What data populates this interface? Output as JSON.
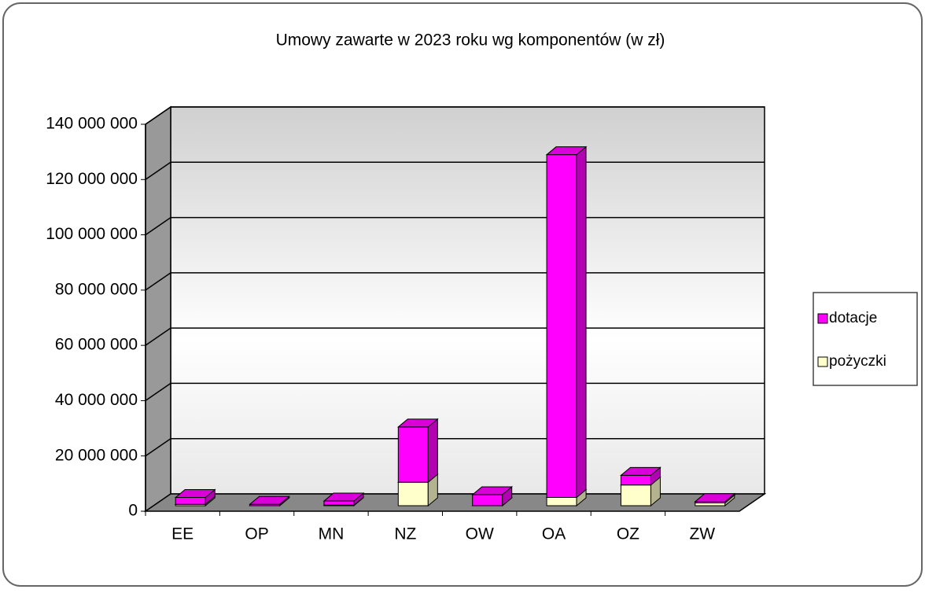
{
  "chart_data": {
    "type": "bar",
    "stacked": true,
    "three_d": true,
    "title": "Umowy zawarte w 2023 roku wg komponentów (w zł)",
    "categories": [
      "EE",
      "OP",
      "MN",
      "NZ",
      "OW",
      "OA",
      "OZ",
      "ZW"
    ],
    "series": [
      {
        "name": "dotacje",
        "color": "#ff00ff",
        "values": [
          2500000,
          500000,
          1500000,
          20000000,
          4000000,
          124000000,
          3500000,
          500000
        ]
      },
      {
        "name": "pożyczki",
        "color": "#ffffcc",
        "values": [
          500000,
          0,
          200000,
          8500000,
          0,
          3000000,
          7500000,
          1000000
        ]
      }
    ],
    "ylim": [
      0,
      140000000
    ],
    "yticks": [
      0,
      {
        "value": 20000000,
        "label": "20 000 000"
      },
      {
        "value": 40000000,
        "label": "40 000 000"
      },
      {
        "value": 60000000,
        "label": "60 000 000"
      },
      {
        "value": 80000000,
        "label": "80 000 000"
      },
      {
        "value": 100000000,
        "label": "100 000 000"
      },
      {
        "value": 120000000,
        "label": "120 000 000"
      },
      {
        "value": 140000000,
        "label": "140 000 000"
      }
    ],
    "grid": true,
    "legend": "right"
  }
}
